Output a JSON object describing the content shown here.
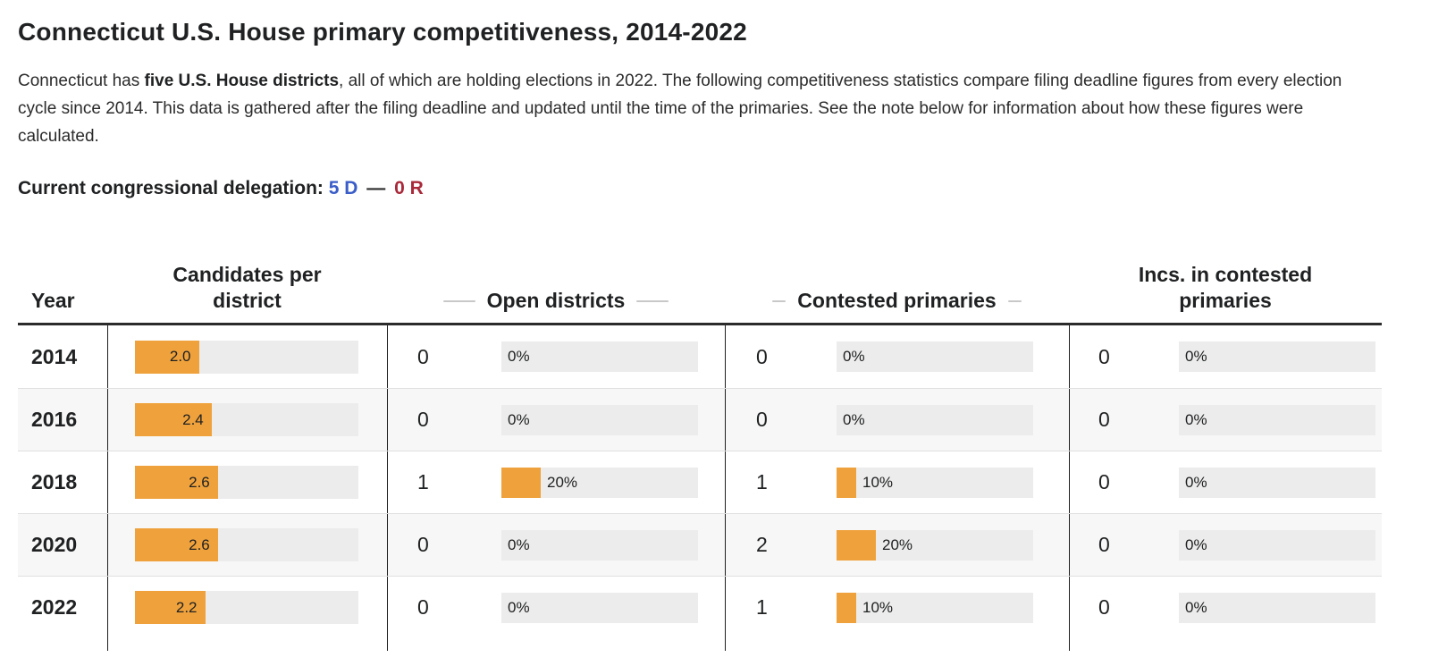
{
  "page": {
    "title": "Connecticut U.S. House primary competitiveness, 2014-2022",
    "intro": {
      "pre_bold": "Connecticut has ",
      "bold": "five U.S. House districts",
      "post_bold": ", all of which are holding elections in 2022. The following competitiveness statistics compare filing deadline figures from every election cycle since 2014. This data is gathered after the filing deadline and updated until the time of the primaries. See the note below for information about how these figures were calculated."
    },
    "delegation": {
      "label": "Current congressional delegation:",
      "dem": "5 D",
      "separator": "—",
      "rep": "0 R",
      "dem_color": "#3a5dc8",
      "rep_color": "#a9293a"
    }
  },
  "table": {
    "headers": {
      "year": "Year",
      "candidates": "Candidates per district",
      "open": "Open districts",
      "contested": "Contested primaries",
      "incs": "Incs. in contested primaries"
    },
    "rows": [
      {
        "year": "2014",
        "candidates": {
          "value": "2.0",
          "fill_pct": 28.6
        },
        "open": {
          "count": "0",
          "pct": 0,
          "pct_label": "0%"
        },
        "contested": {
          "count": "0",
          "pct": 0,
          "pct_label": "0%"
        },
        "incs": {
          "count": "0",
          "pct": 0,
          "pct_label": "0%"
        }
      },
      {
        "year": "2016",
        "candidates": {
          "value": "2.4",
          "fill_pct": 34.3
        },
        "open": {
          "count": "0",
          "pct": 0,
          "pct_label": "0%"
        },
        "contested": {
          "count": "0",
          "pct": 0,
          "pct_label": "0%"
        },
        "incs": {
          "count": "0",
          "pct": 0,
          "pct_label": "0%"
        }
      },
      {
        "year": "2018",
        "candidates": {
          "value": "2.6",
          "fill_pct": 37.1
        },
        "open": {
          "count": "1",
          "pct": 20,
          "pct_label": "20%"
        },
        "contested": {
          "count": "1",
          "pct": 10,
          "pct_label": "10%"
        },
        "incs": {
          "count": "0",
          "pct": 0,
          "pct_label": "0%"
        }
      },
      {
        "year": "2020",
        "candidates": {
          "value": "2.6",
          "fill_pct": 37.1
        },
        "open": {
          "count": "0",
          "pct": 0,
          "pct_label": "0%"
        },
        "contested": {
          "count": "2",
          "pct": 20,
          "pct_label": "20%"
        },
        "incs": {
          "count": "0",
          "pct": 0,
          "pct_label": "0%"
        }
      },
      {
        "year": "2022",
        "candidates": {
          "value": "2.2",
          "fill_pct": 31.4
        },
        "open": {
          "count": "0",
          "pct": 0,
          "pct_label": "0%"
        },
        "contested": {
          "count": "1",
          "pct": 10,
          "pct_label": "10%"
        },
        "incs": {
          "count": "0",
          "pct": 0,
          "pct_label": "0%"
        }
      }
    ]
  },
  "chart_data": {
    "type": "table",
    "title": "Connecticut U.S. House primary competitiveness, 2014-2022",
    "categories": [
      "2014",
      "2016",
      "2018",
      "2020",
      "2022"
    ],
    "series": [
      {
        "name": "Candidates per district",
        "values": [
          2.0,
          2.4,
          2.6,
          2.6,
          2.2
        ]
      },
      {
        "name": "Open districts (count)",
        "values": [
          0,
          0,
          1,
          0,
          0
        ]
      },
      {
        "name": "Open districts (%)",
        "values": [
          0,
          0,
          20,
          0,
          0
        ]
      },
      {
        "name": "Contested primaries (count)",
        "values": [
          0,
          0,
          1,
          2,
          1
        ]
      },
      {
        "name": "Contested primaries (%)",
        "values": [
          0,
          0,
          10,
          20,
          10
        ]
      },
      {
        "name": "Incs. in contested primaries (count)",
        "values": [
          0,
          0,
          0,
          0,
          0
        ]
      },
      {
        "name": "Incs. in contested primaries (%)",
        "values": [
          0,
          0,
          0,
          0,
          0
        ]
      }
    ],
    "bar_color": "#efa23c",
    "track_color": "#ececec",
    "candidates_bar_axis_max": 7,
    "legend_position": "none",
    "grid": false
  }
}
